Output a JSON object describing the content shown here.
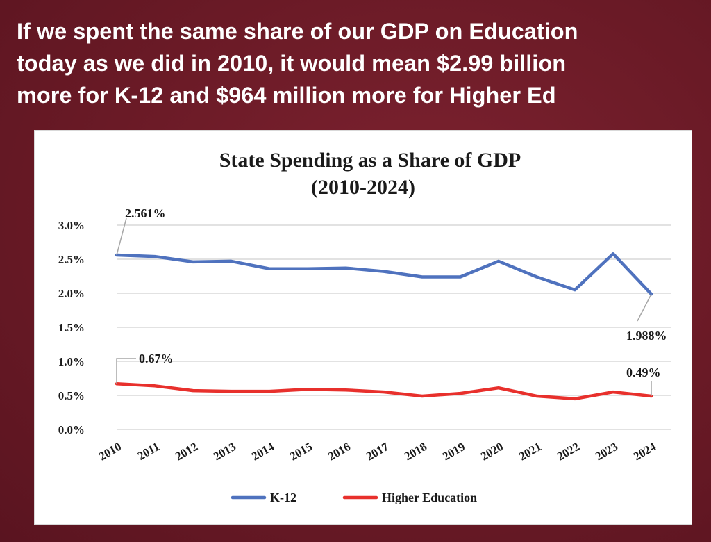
{
  "headline": {
    "line1": "If we spent the same share of our GDP on Education",
    "line2": "today as we did in 2010, it would mean $2.99 billion",
    "line3": "more for K-12 and $964 million more for Higher Ed"
  },
  "chart_data": {
    "type": "line",
    "title": "State Spending as a Share of GDP",
    "subtitle": "(2010-2024)",
    "x": [
      "2010",
      "2011",
      "2012",
      "2013",
      "2014",
      "2015",
      "2016",
      "2017",
      "2018",
      "2019",
      "2020",
      "2021",
      "2022",
      "2023",
      "2024"
    ],
    "y_ticks": [
      "0.0%",
      "0.5%",
      "1.0%",
      "1.5%",
      "2.0%",
      "2.5%",
      "3.0%"
    ],
    "ylim": [
      0,
      3.0
    ],
    "grid": true,
    "legend_position": "bottom",
    "series": [
      {
        "name": "K-12",
        "color": "#4f72be",
        "values": [
          2.561,
          2.54,
          2.46,
          2.47,
          2.36,
          2.36,
          2.37,
          2.32,
          2.24,
          2.24,
          2.47,
          2.24,
          2.05,
          2.58,
          1.988
        ]
      },
      {
        "name": "Higher Education",
        "color": "#e8302c",
        "values": [
          0.67,
          0.64,
          0.57,
          0.56,
          0.56,
          0.59,
          0.58,
          0.55,
          0.49,
          0.53,
          0.61,
          0.49,
          0.45,
          0.55,
          0.49
        ]
      }
    ],
    "annotations": [
      {
        "text": "2.561%",
        "series": 0,
        "index": 0
      },
      {
        "text": "1.988%",
        "series": 0,
        "index": 14
      },
      {
        "text": "0.67%",
        "series": 1,
        "index": 0
      },
      {
        "text": "0.49%",
        "series": 1,
        "index": 14
      }
    ]
  }
}
